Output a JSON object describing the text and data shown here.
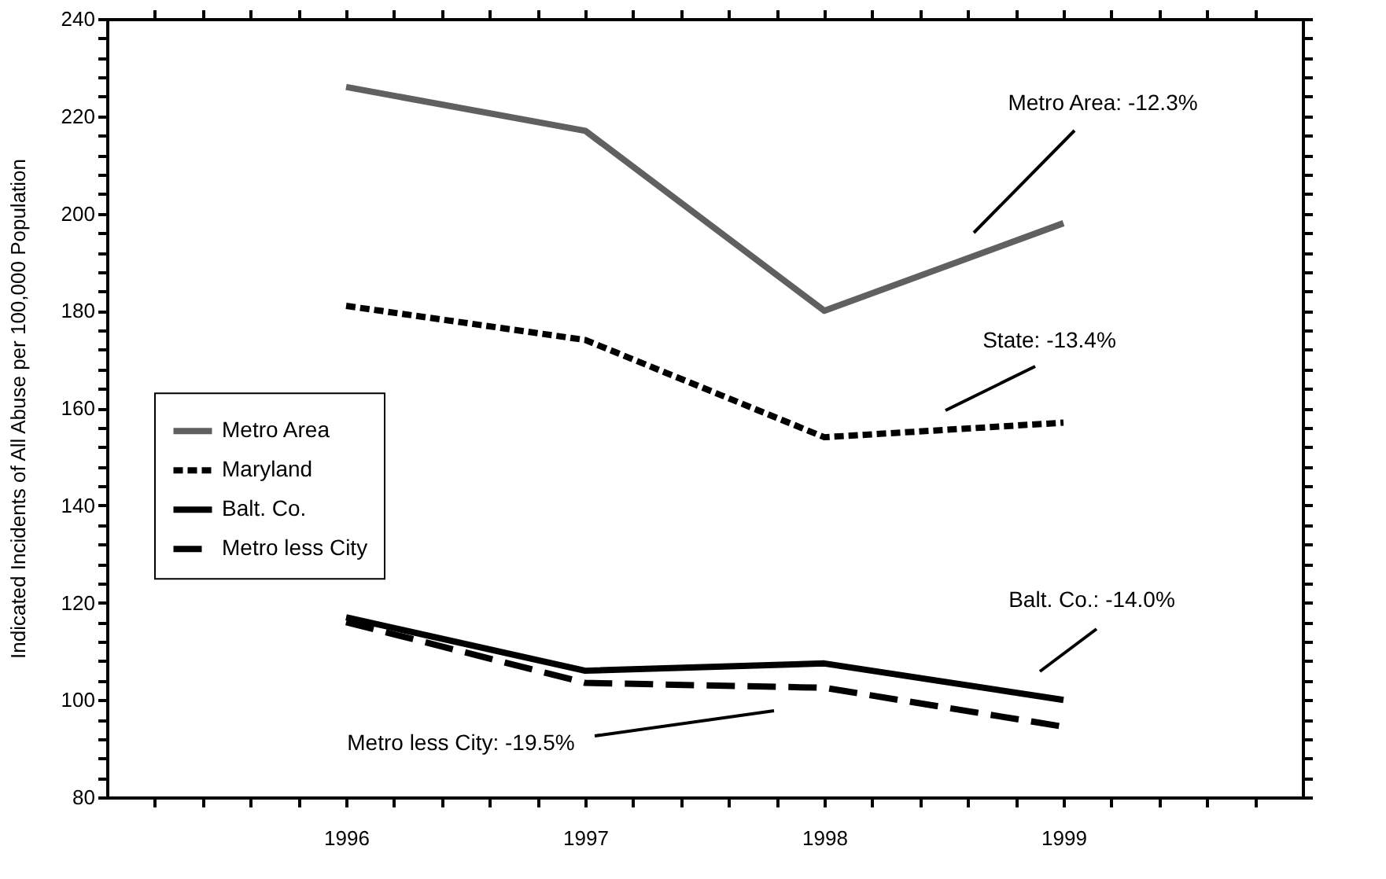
{
  "chart_data": {
    "type": "line",
    "ylabel": "Indicated Incidents of All Abuse per 100,000 Population",
    "x": [
      1996,
      1997,
      1998,
      1999
    ],
    "series": [
      {
        "name": "Metro Area",
        "color": "#606060",
        "line_style": "solid",
        "values": [
          226,
          217,
          180,
          198
        ]
      },
      {
        "name": "Maryland",
        "color": "#000000",
        "line_style": "dotted",
        "values": [
          181,
          174,
          154,
          157
        ]
      },
      {
        "name": "Balt. Co.",
        "color": "#000000",
        "line_style": "solid",
        "values": [
          117,
          106,
          107.5,
          100
        ]
      },
      {
        "name": "Metro less City",
        "color": "#000000",
        "line_style": "dashed",
        "values": [
          116,
          103.5,
          102.5,
          94.5
        ]
      }
    ],
    "xlim": [
      1995,
      2000
    ],
    "xticks": [
      {
        "value": 1995.2,
        "label": null
      },
      {
        "value": 1995.4,
        "label": null
      },
      {
        "value": 1995.6,
        "label": null
      },
      {
        "value": 1995.8,
        "label": null
      },
      1996,
      {
        "value": 1996.2,
        "label": null
      },
      {
        "value": 1996.4,
        "label": null
      },
      {
        "value": 1996.6,
        "label": null
      },
      {
        "value": 1996.8,
        "label": null
      },
      1997,
      {
        "value": 1997.2,
        "label": null
      },
      {
        "value": 1997.4,
        "label": null
      },
      {
        "value": 1997.6,
        "label": null
      },
      {
        "value": 1997.8,
        "label": null
      },
      1998,
      {
        "value": 1998.2,
        "label": null
      },
      {
        "value": 1998.4,
        "label": null
      },
      {
        "value": 1998.6,
        "label": null
      },
      {
        "value": 1998.8,
        "label": null
      },
      1999,
      {
        "value": 1999.2,
        "label": null
      },
      {
        "value": 1999.4,
        "label": null
      },
      {
        "value": 1999.6,
        "label": null
      },
      {
        "value": 1999.8,
        "label": null
      }
    ],
    "ylim": [
      80,
      240
    ],
    "yticks": [
      80,
      {
        "value": 84,
        "label": null
      },
      {
        "value": 88,
        "label": null
      },
      {
        "value": 92,
        "label": null
      },
      {
        "value": 96,
        "label": null
      },
      100,
      {
        "value": 104,
        "label": null
      },
      {
        "value": 108,
        "label": null
      },
      {
        "value": 112,
        "label": null
      },
      {
        "value": 116,
        "label": null
      },
      120,
      {
        "value": 124,
        "label": null
      },
      {
        "value": 128,
        "label": null
      },
      {
        "value": 132,
        "label": null
      },
      {
        "value": 136,
        "label": null
      },
      140,
      {
        "value": 144,
        "label": null
      },
      {
        "value": 148,
        "label": null
      },
      {
        "value": 152,
        "label": null
      },
      {
        "value": 156,
        "label": null
      },
      160,
      {
        "value": 164,
        "label": null
      },
      {
        "value": 168,
        "label": null
      },
      {
        "value": 172,
        "label": null
      },
      {
        "value": 176,
        "label": null
      },
      180,
      {
        "value": 184,
        "label": null
      },
      {
        "value": 188,
        "label": null
      },
      {
        "value": 192,
        "label": null
      },
      {
        "value": 196,
        "label": null
      },
      200,
      {
        "value": 204,
        "label": null
      },
      {
        "value": 208,
        "label": null
      },
      {
        "value": 212,
        "label": null
      },
      {
        "value": 216,
        "label": null
      },
      220,
      {
        "value": 224,
        "label": null
      },
      {
        "value": 228,
        "label": null
      },
      {
        "value": 232,
        "label": null
      },
      {
        "value": 236,
        "label": null
      },
      240
    ],
    "annotations": [
      "Metro Area: -12.3%",
      "State: -13.4%",
      "Balt. Co.: -14.0%",
      "Metro less City: -19.5%"
    ],
    "grid": false,
    "legend": "left",
    "marker": "none"
  }
}
